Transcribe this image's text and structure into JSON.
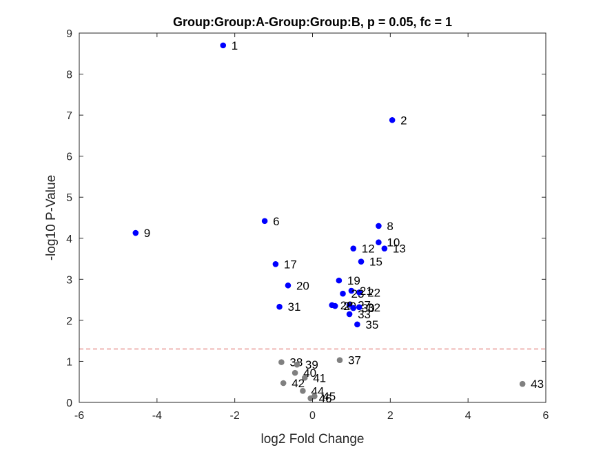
{
  "chart_data": {
    "type": "scatter",
    "title": "Group:Group:A-Group:Group:B, p = 0.05, fc = 1",
    "xlabel": "log2 Fold Change",
    "ylabel": "-log10 P-Value",
    "xlim": [
      -6,
      6
    ],
    "ylim": [
      0,
      9
    ],
    "xticks": [
      -6,
      -4,
      -2,
      0,
      2,
      4,
      6
    ],
    "yticks": [
      0,
      1,
      2,
      3,
      4,
      5,
      6,
      7,
      8,
      9
    ],
    "grid": false,
    "threshold_y": 1.301,
    "colors": {
      "significant": "#0000ff",
      "not_significant": "#808080",
      "threshold": "#d9534f",
      "axis": "#262626"
    },
    "points": [
      {
        "label": "1",
        "x": -2.3,
        "y": 8.7,
        "significant": true
      },
      {
        "label": "2",
        "x": 2.05,
        "y": 6.88,
        "significant": true
      },
      {
        "label": "6",
        "x": -1.23,
        "y": 4.42,
        "significant": true
      },
      {
        "label": "8",
        "x": 1.7,
        "y": 4.3,
        "significant": true
      },
      {
        "label": "9",
        "x": -4.55,
        "y": 4.13,
        "significant": true
      },
      {
        "label": "10",
        "x": 1.7,
        "y": 3.9,
        "significant": true
      },
      {
        "label": "12",
        "x": 1.05,
        "y": 3.75,
        "significant": true
      },
      {
        "label": "13",
        "x": 1.85,
        "y": 3.75,
        "significant": true
      },
      {
        "label": "15",
        "x": 1.25,
        "y": 3.43,
        "significant": true
      },
      {
        "label": "17",
        "x": -0.95,
        "y": 3.37,
        "significant": true
      },
      {
        "label": "19",
        "x": 0.68,
        "y": 2.97,
        "significant": true
      },
      {
        "label": "20",
        "x": -0.63,
        "y": 2.85,
        "significant": true
      },
      {
        "label": "21",
        "x": 1.0,
        "y": 2.72,
        "significant": true
      },
      {
        "label": "22",
        "x": 1.2,
        "y": 2.68,
        "significant": true
      },
      {
        "label": "23",
        "x": 0.78,
        "y": 2.65,
        "significant": true
      },
      {
        "label": "27",
        "x": 0.95,
        "y": 2.38,
        "significant": true
      },
      {
        "label": "28",
        "x": 0.5,
        "y": 2.37,
        "significant": true
      },
      {
        "label": "29",
        "x": 0.58,
        "y": 2.35,
        "significant": true
      },
      {
        "label": "30",
        "x": 1.05,
        "y": 2.3,
        "significant": true
      },
      {
        "label": "31",
        "x": -0.85,
        "y": 2.33,
        "significant": true
      },
      {
        "label": "32",
        "x": 1.2,
        "y": 2.32,
        "significant": true
      },
      {
        "label": "33",
        "x": 0.95,
        "y": 2.15,
        "significant": true
      },
      {
        "label": "35",
        "x": 1.15,
        "y": 1.9,
        "significant": true
      },
      {
        "label": "37",
        "x": 0.7,
        "y": 1.03,
        "significant": false
      },
      {
        "label": "38",
        "x": -0.8,
        "y": 0.98,
        "significant": false
      },
      {
        "label": "39",
        "x": -0.4,
        "y": 0.92,
        "significant": false
      },
      {
        "label": "40",
        "x": -0.45,
        "y": 0.72,
        "significant": false
      },
      {
        "label": "41",
        "x": -0.2,
        "y": 0.6,
        "significant": false
      },
      {
        "label": "42",
        "x": -0.75,
        "y": 0.47,
        "significant": false
      },
      {
        "label": "43",
        "x": 5.4,
        "y": 0.45,
        "significant": false
      },
      {
        "label": "44",
        "x": -0.25,
        "y": 0.28,
        "significant": false
      },
      {
        "label": "45",
        "x": 0.05,
        "y": 0.15,
        "significant": false
      },
      {
        "label": "46",
        "x": -0.05,
        "y": 0.1,
        "significant": false
      }
    ]
  }
}
